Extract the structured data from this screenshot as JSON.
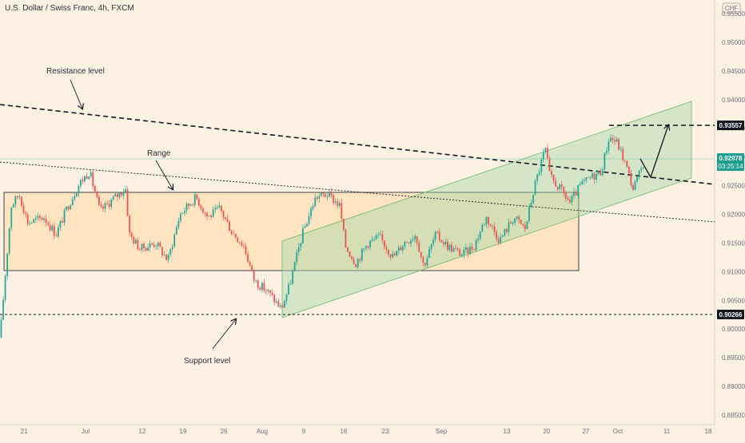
{
  "header": {
    "symbol_title": "U.S. Dollar / Swiss Franc, 4h, FXCM"
  },
  "annotations": {
    "resistance_label": "Resistance level",
    "range_label": "Range",
    "support_label": "Support level"
  },
  "price_axis": {
    "currency": "CHF"
  },
  "price_tags": {
    "target": "0.93557",
    "current_price": "0.92978",
    "countdown": "03:25:14",
    "support": "0.90266"
  },
  "colors": {
    "background": "#fdf1e4",
    "up_candle": "#26a69a",
    "down_candle": "#ef5350",
    "channel_fill": "#a5d6a7",
    "range_fill": "#ffcc80",
    "current_price_tag": "#1e9e8f",
    "price_tag": "#131722"
  },
  "chart_data": {
    "type": "candlestick",
    "title": "U.S. Dollar / Swiss Franc, 4h, FXCM",
    "ylim": [
      0.8825,
      0.9575
    ],
    "y_ticks": [
      "0.88500",
      "0.89000",
      "0.89500",
      "0.90000",
      "0.90500",
      "0.91000",
      "0.91500",
      "0.92000",
      "0.92500",
      "0.93000",
      "0.93500",
      "0.94000",
      "0.94500",
      "0.95000",
      "0.95500"
    ],
    "x_ticks": [
      "21",
      "Jul",
      "12",
      "19",
      "26",
      "Aug",
      "9",
      "16",
      "23",
      "Sep",
      "13",
      "20",
      "27",
      "Oct",
      "11",
      "18"
    ],
    "price_path": [
      [
        0,
        0.8985
      ],
      [
        6,
        0.9085
      ],
      [
        14,
        0.9215
      ],
      [
        24,
        0.9235
      ],
      [
        35,
        0.9185
      ],
      [
        55,
        0.9195
      ],
      [
        70,
        0.9165
      ],
      [
        85,
        0.9215
      ],
      [
        100,
        0.9255
      ],
      [
        112,
        0.9275
      ],
      [
        125,
        0.9205
      ],
      [
        140,
        0.9225
      ],
      [
        157,
        0.9245
      ],
      [
        162,
        0.9165
      ],
      [
        175,
        0.914
      ],
      [
        195,
        0.915
      ],
      [
        210,
        0.912
      ],
      [
        225,
        0.92
      ],
      [
        245,
        0.923
      ],
      [
        260,
        0.9195
      ],
      [
        275,
        0.921
      ],
      [
        290,
        0.917
      ],
      [
        305,
        0.9145
      ],
      [
        318,
        0.9085
      ],
      [
        335,
        0.9065
      ],
      [
        352,
        0.9035
      ],
      [
        362,
        0.9075
      ],
      [
        378,
        0.9165
      ],
      [
        395,
        0.923
      ],
      [
        410,
        0.9235
      ],
      [
        425,
        0.9215
      ],
      [
        432,
        0.9145
      ],
      [
        445,
        0.9115
      ],
      [
        460,
        0.915
      ],
      [
        475,
        0.916
      ],
      [
        492,
        0.9125
      ],
      [
        505,
        0.915
      ],
      [
        520,
        0.9165
      ],
      [
        530,
        0.911
      ],
      [
        545,
        0.9165
      ],
      [
        560,
        0.9145
      ],
      [
        578,
        0.913
      ],
      [
        593,
        0.9145
      ],
      [
        608,
        0.9195
      ],
      [
        625,
        0.9155
      ],
      [
        643,
        0.9195
      ],
      [
        657,
        0.9175
      ],
      [
        668,
        0.9245
      ],
      [
        682,
        0.9315
      ],
      [
        688,
        0.9265
      ],
      [
        703,
        0.924
      ],
      [
        713,
        0.922
      ],
      [
        726,
        0.925
      ],
      [
        740,
        0.9265
      ],
      [
        752,
        0.9275
      ],
      [
        762,
        0.9335
      ],
      [
        772,
        0.9325
      ],
      [
        782,
        0.929
      ],
      [
        792,
        0.9245
      ],
      [
        800,
        0.927
      ],
      [
        807,
        0.9298
      ]
    ],
    "levels": [
      {
        "name": "Resistance level",
        "value": 0.93557
      },
      {
        "name": "Support level",
        "value": 0.90266
      }
    ],
    "range_box": {
      "label": "Range",
      "top": 0.92385,
      "bottom": 0.9101
    },
    "current_price": 0.92978,
    "projection": "up to 0.93557"
  }
}
